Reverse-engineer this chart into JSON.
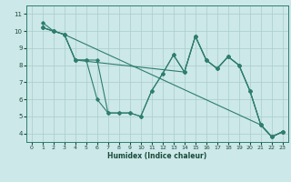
{
  "title": "",
  "xlabel": "Humidex (Indice chaleur)",
  "xlim": [
    -0.5,
    23.5
  ],
  "ylim": [
    3.5,
    11.5
  ],
  "xticks": [
    0,
    1,
    2,
    3,
    4,
    5,
    6,
    7,
    8,
    9,
    10,
    11,
    12,
    13,
    14,
    15,
    16,
    17,
    18,
    19,
    20,
    21,
    22,
    23
  ],
  "yticks": [
    4,
    5,
    6,
    7,
    8,
    9,
    10,
    11
  ],
  "background_color": "#cce8e8",
  "grid_color": "#aacccc",
  "line_color": "#2e7d6e",
  "lines": [
    {
      "x": [
        1,
        2,
        3,
        4,
        5,
        6,
        7,
        8,
        9,
        10,
        11,
        12,
        13,
        14,
        15,
        16,
        17,
        18,
        19,
        20,
        21,
        22,
        23
      ],
      "y": [
        10.2,
        10.0,
        9.8,
        8.3,
        8.3,
        6.0,
        5.2,
        5.2,
        5.2,
        5.0,
        6.5,
        7.5,
        8.6,
        7.6,
        9.7,
        8.3,
        7.8,
        8.5,
        8.0,
        6.5,
        4.5,
        3.8,
        4.1
      ]
    },
    {
      "x": [
        1,
        2,
        3,
        4,
        5,
        6,
        7,
        8,
        9,
        10,
        11,
        12,
        13,
        14,
        15,
        16,
        17,
        18,
        19,
        20,
        21,
        22,
        23
      ],
      "y": [
        10.2,
        10.0,
        9.8,
        8.3,
        8.3,
        8.3,
        5.2,
        5.2,
        5.2,
        5.0,
        6.5,
        7.5,
        8.6,
        7.6,
        9.7,
        8.3,
        7.8,
        8.5,
        8.0,
        6.5,
        4.5,
        3.8,
        4.1
      ]
    },
    {
      "x": [
        1,
        2,
        3,
        4,
        14,
        15,
        16,
        17,
        18,
        19,
        20,
        21,
        22,
        23
      ],
      "y": [
        10.2,
        10.0,
        9.8,
        8.3,
        7.6,
        9.7,
        8.3,
        7.8,
        8.5,
        8.0,
        6.5,
        4.5,
        3.8,
        4.1
      ]
    },
    {
      "x": [
        1,
        2,
        3,
        21,
        22,
        23
      ],
      "y": [
        10.5,
        10.0,
        9.8,
        4.5,
        3.8,
        4.1
      ]
    }
  ]
}
